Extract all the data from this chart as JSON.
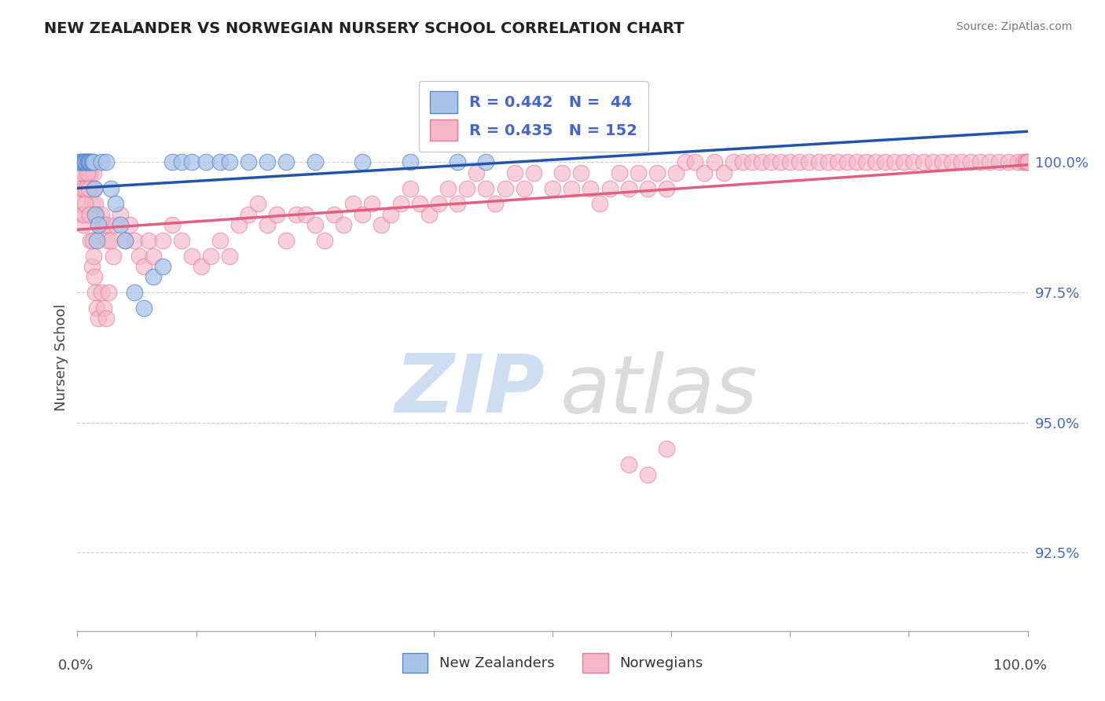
{
  "title": "NEW ZEALANDER VS NORWEGIAN NURSERY SCHOOL CORRELATION CHART",
  "source": "Source: ZipAtlas.com",
  "ylabel": "Nursery School",
  "y_ticks": [
    92.5,
    95.0,
    97.5,
    100.0
  ],
  "y_tick_labels": [
    "92.5%",
    "95.0%",
    "97.5%",
    "100.0%"
  ],
  "x_range": [
    0.0,
    1.0
  ],
  "y_range": [
    91.0,
    101.5
  ],
  "color_nz_fill": "#aac4e8",
  "color_nz_edge": "#5588cc",
  "color_no_fill": "#f4b8c8",
  "color_no_edge": "#e87898",
  "color_nz_line": "#2255AA",
  "color_no_line": "#e06080",
  "tick_color_y": "#4466CC",
  "grid_color": "#cccccc",
  "title_color": "#222222",
  "source_color": "#777777",
  "bottom_legend_labels": [
    "New Zealanders",
    "Norwegians"
  ],
  "nz_x": [
    0.002,
    0.003,
    0.004,
    0.005,
    0.006,
    0.007,
    0.008,
    0.009,
    0.01,
    0.011,
    0.012,
    0.013,
    0.014,
    0.015,
    0.016,
    0.017,
    0.018,
    0.019,
    0.02,
    0.022,
    0.025,
    0.03,
    0.035,
    0.04,
    0.045,
    0.05,
    0.06,
    0.07,
    0.08,
    0.09,
    0.1,
    0.11,
    0.12,
    0.135,
    0.15,
    0.16,
    0.18,
    0.2,
    0.22,
    0.25,
    0.3,
    0.35,
    0.4,
    0.43
  ],
  "nz_y": [
    100.0,
    100.0,
    100.0,
    100.0,
    100.0,
    100.0,
    100.0,
    100.0,
    100.0,
    100.0,
    100.0,
    100.0,
    100.0,
    100.0,
    100.0,
    100.0,
    99.5,
    99.0,
    98.5,
    98.8,
    100.0,
    100.0,
    99.5,
    99.2,
    98.8,
    98.5,
    97.5,
    97.2,
    97.8,
    98.0,
    100.0,
    100.0,
    100.0,
    100.0,
    100.0,
    100.0,
    100.0,
    100.0,
    100.0,
    100.0,
    100.0,
    100.0,
    100.0,
    100.0
  ],
  "no_x": [
    0.002,
    0.003,
    0.004,
    0.005,
    0.006,
    0.007,
    0.008,
    0.009,
    0.01,
    0.011,
    0.012,
    0.013,
    0.014,
    0.015,
    0.016,
    0.017,
    0.018,
    0.019,
    0.02,
    0.022,
    0.025,
    0.027,
    0.03,
    0.032,
    0.035,
    0.038,
    0.04,
    0.045,
    0.05,
    0.055,
    0.06,
    0.065,
    0.07,
    0.075,
    0.08,
    0.09,
    0.1,
    0.11,
    0.12,
    0.13,
    0.14,
    0.15,
    0.16,
    0.17,
    0.18,
    0.19,
    0.2,
    0.21,
    0.22,
    0.23,
    0.24,
    0.25,
    0.26,
    0.27,
    0.28,
    0.29,
    0.3,
    0.31,
    0.32,
    0.33,
    0.34,
    0.35,
    0.36,
    0.37,
    0.38,
    0.39,
    0.4,
    0.41,
    0.42,
    0.43,
    0.44,
    0.45,
    0.46,
    0.47,
    0.48,
    0.5,
    0.51,
    0.52,
    0.53,
    0.54,
    0.55,
    0.56,
    0.57,
    0.58,
    0.59,
    0.6,
    0.61,
    0.62,
    0.63,
    0.64,
    0.65,
    0.66,
    0.67,
    0.68,
    0.69,
    0.7,
    0.71,
    0.72,
    0.73,
    0.74,
    0.75,
    0.76,
    0.77,
    0.78,
    0.79,
    0.8,
    0.81,
    0.82,
    0.83,
    0.84,
    0.85,
    0.86,
    0.87,
    0.88,
    0.89,
    0.9,
    0.91,
    0.92,
    0.93,
    0.94,
    0.95,
    0.96,
    0.97,
    0.98,
    0.99,
    0.995,
    0.998,
    0.999,
    1.0,
    1.0,
    0.006,
    0.007,
    0.008,
    0.009,
    0.01,
    0.011,
    0.012,
    0.013,
    0.014,
    0.015,
    0.016,
    0.017,
    0.018,
    0.019,
    0.02,
    0.022,
    0.025,
    0.028,
    0.03,
    0.033,
    0.58,
    0.6,
    0.62
  ],
  "no_y": [
    99.2,
    99.5,
    99.8,
    99.0,
    99.5,
    99.8,
    100.0,
    100.0,
    100.0,
    100.0,
    99.8,
    99.5,
    99.8,
    99.2,
    99.5,
    99.8,
    99.5,
    99.2,
    99.0,
    98.8,
    99.0,
    98.8,
    98.8,
    98.5,
    98.5,
    98.2,
    98.8,
    99.0,
    98.5,
    98.8,
    98.5,
    98.2,
    98.0,
    98.5,
    98.2,
    98.5,
    98.8,
    98.5,
    98.2,
    98.0,
    98.2,
    98.5,
    98.2,
    98.8,
    99.0,
    99.2,
    98.8,
    99.0,
    98.5,
    99.0,
    99.0,
    98.8,
    98.5,
    99.0,
    98.8,
    99.2,
    99.0,
    99.2,
    98.8,
    99.0,
    99.2,
    99.5,
    99.2,
    99.0,
    99.2,
    99.5,
    99.2,
    99.5,
    99.8,
    99.5,
    99.2,
    99.5,
    99.8,
    99.5,
    99.8,
    99.5,
    99.8,
    99.5,
    99.8,
    99.5,
    99.2,
    99.5,
    99.8,
    99.5,
    99.8,
    99.5,
    99.8,
    99.5,
    99.8,
    100.0,
    100.0,
    99.8,
    100.0,
    99.8,
    100.0,
    100.0,
    100.0,
    100.0,
    100.0,
    100.0,
    100.0,
    100.0,
    100.0,
    100.0,
    100.0,
    100.0,
    100.0,
    100.0,
    100.0,
    100.0,
    100.0,
    100.0,
    100.0,
    100.0,
    100.0,
    100.0,
    100.0,
    100.0,
    100.0,
    100.0,
    100.0,
    100.0,
    100.0,
    100.0,
    100.0,
    100.0,
    100.0,
    100.0,
    100.0,
    100.0,
    98.8,
    99.0,
    99.2,
    99.5,
    99.8,
    100.0,
    99.5,
    99.0,
    98.5,
    98.0,
    98.5,
    98.2,
    97.8,
    97.5,
    97.2,
    97.0,
    97.5,
    97.2,
    97.0,
    97.5,
    94.2,
    94.0,
    94.5
  ]
}
